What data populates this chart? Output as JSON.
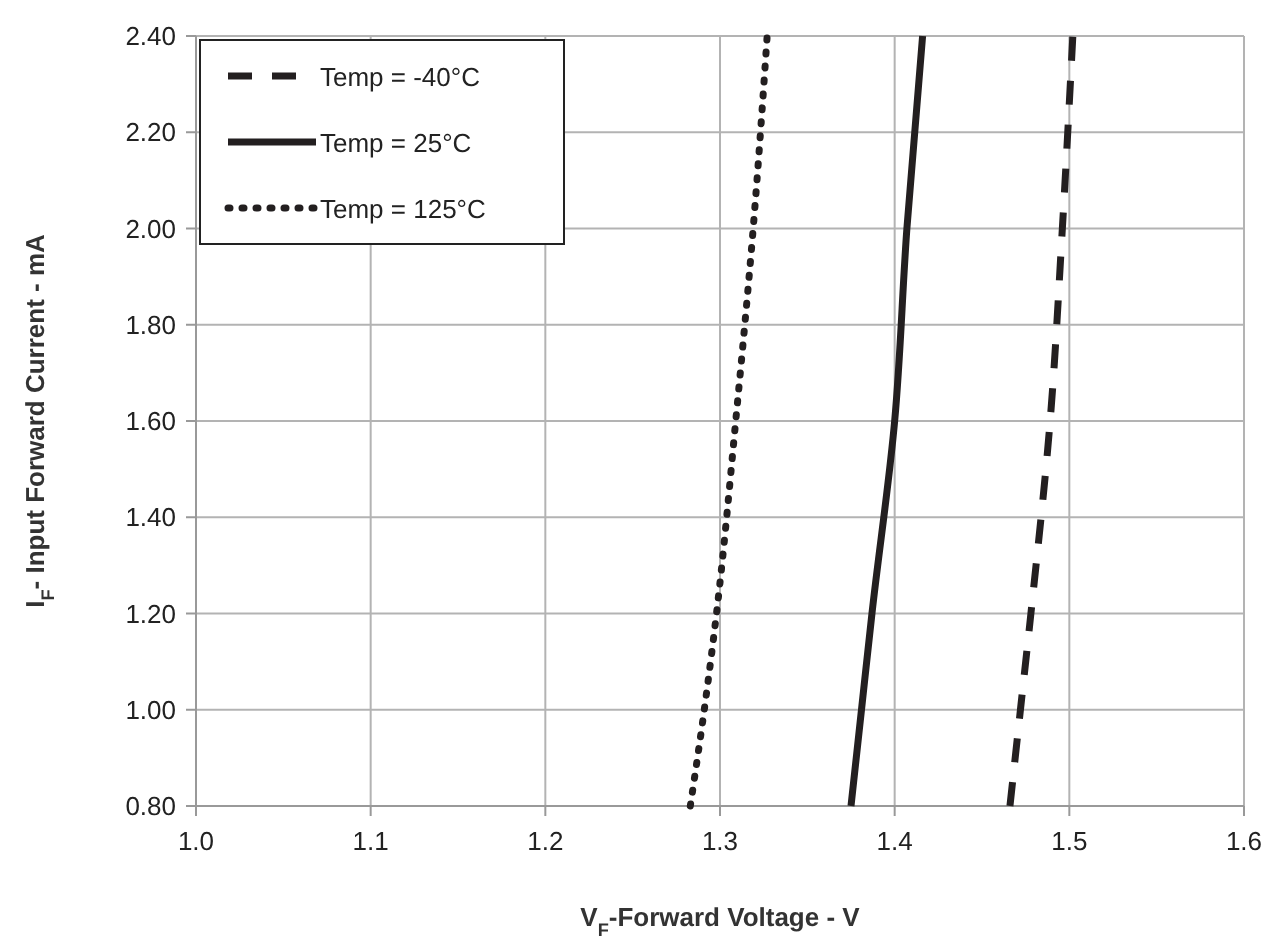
{
  "chart_data": {
    "type": "line",
    "xlabel": "V$_{F}$-Forward Voltage - V",
    "ylabel": "I$_{F}$- Input Forward Current - mA",
    "xlim": [
      1.0,
      1.6
    ],
    "xticks": [
      {
        "value": 1.0,
        "label": "1.0"
      },
      {
        "value": 1.1,
        "label": "1.1"
      },
      {
        "value": 1.2,
        "label": "1.2"
      },
      {
        "value": 1.3,
        "label": "1.3"
      },
      {
        "value": 1.4,
        "label": "1.4"
      },
      {
        "value": 1.5,
        "label": "1.5"
      },
      {
        "value": 1.6,
        "label": "1.6"
      }
    ],
    "ylim": [
      0.8,
      2.4
    ],
    "yticks": [
      {
        "value": 0.8,
        "label": "0.80"
      },
      {
        "value": 1.0,
        "label": "1.00"
      },
      {
        "value": 1.2,
        "label": "1.20"
      },
      {
        "value": 1.4,
        "label": "1.40"
      },
      {
        "value": 1.6,
        "label": "1.60"
      },
      {
        "value": 1.8,
        "label": "1.80"
      },
      {
        "value": 2.0,
        "label": "2.00"
      },
      {
        "value": 2.2,
        "label": "2.20"
      },
      {
        "value": 2.4,
        "label": "2.40"
      }
    ],
    "grid": true,
    "legend": "top left",
    "series": [
      {
        "name": "Temp = -40°C",
        "color": "#231f20",
        "line_style": "dashed",
        "x": [
          1.466,
          1.472,
          1.478,
          1.489,
          1.496,
          1.502
        ],
        "values": [
          0.8,
          1.0,
          1.2,
          1.6,
          2.0,
          2.4
        ]
      },
      {
        "name": "Temp = 25°C",
        "color": "#231f20",
        "line_style": "solid",
        "x": [
          1.375,
          1.381,
          1.387,
          1.4,
          1.407,
          1.416
        ],
        "values": [
          0.8,
          1.0,
          1.2,
          1.6,
          2.0,
          2.4
        ]
      },
      {
        "name": "Temp = 125°C",
        "color": "#231f20",
        "line_style": "dotted",
        "x": [
          1.283,
          1.291,
          1.298,
          1.309,
          1.319,
          1.327
        ],
        "values": [
          0.8,
          1.0,
          1.2,
          1.6,
          2.0,
          2.4
        ]
      }
    ]
  }
}
